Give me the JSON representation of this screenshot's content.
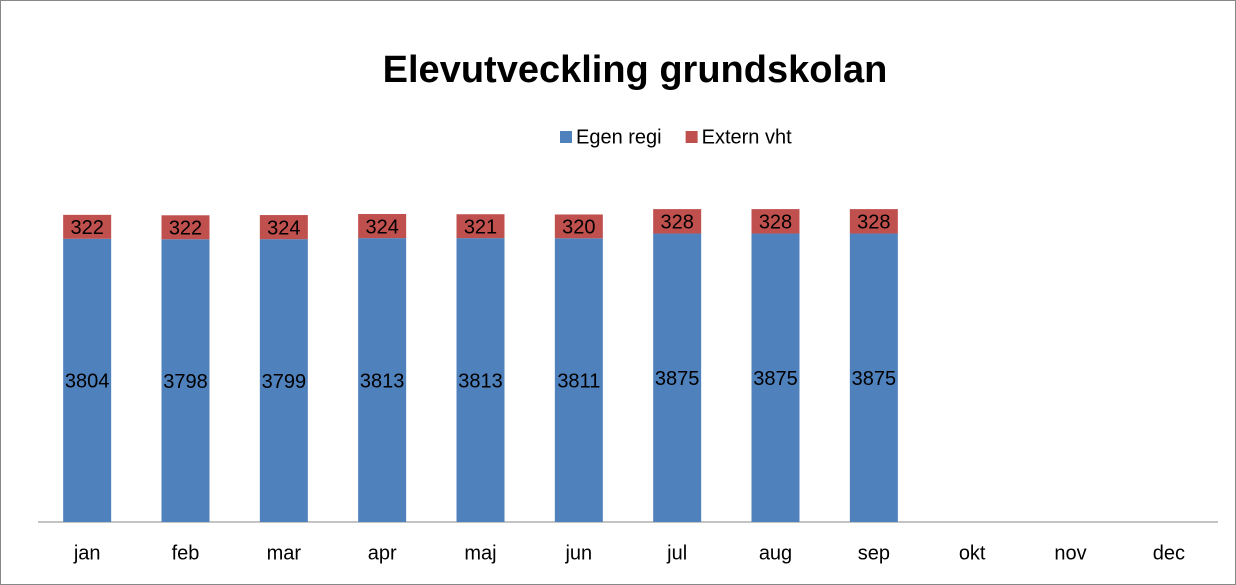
{
  "chart_data": {
    "type": "stacked_bar",
    "title": "Elevutveckling grundskolan",
    "categories": [
      "jan",
      "feb",
      "mar",
      "apr",
      "maj",
      "jun",
      "jul",
      "aug",
      "sep",
      "okt",
      "nov",
      "dec"
    ],
    "series": [
      {
        "name": "Egen regi",
        "color": "#4f81bd",
        "values": [
          3804,
          3798,
          3799,
          3813,
          3813,
          3811,
          3875,
          3875,
          3875,
          null,
          null,
          null
        ]
      },
      {
        "name": "Extern vht",
        "color": "#c0504d",
        "values": [
          322,
          322,
          324,
          324,
          321,
          320,
          328,
          328,
          328,
          null,
          null,
          null
        ]
      }
    ],
    "ylim": [
      0,
      4500
    ]
  }
}
